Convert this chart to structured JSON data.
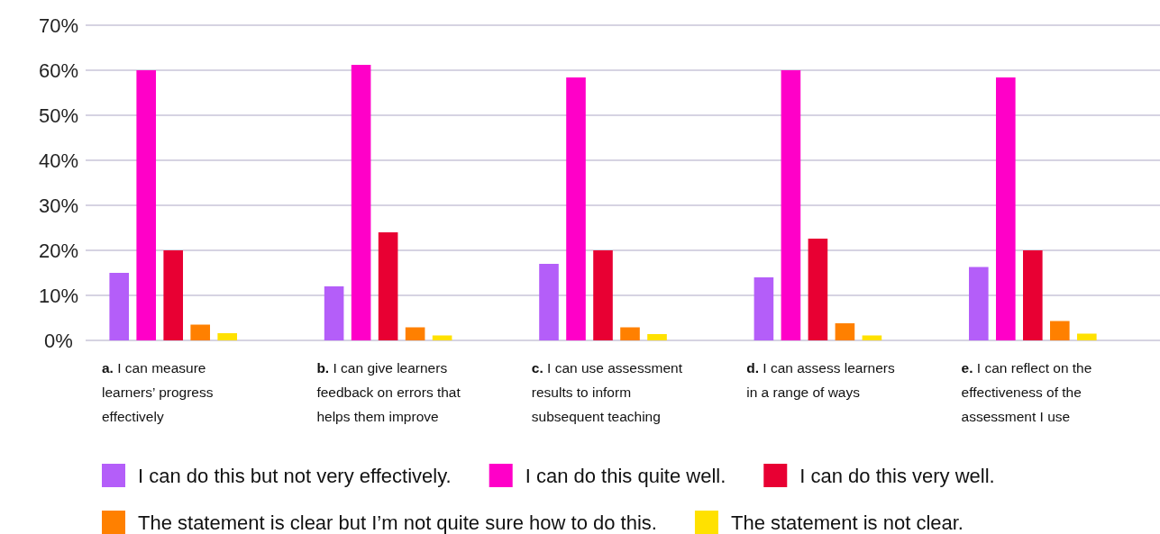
{
  "chart_data": {
    "type": "bar",
    "categories": [
      "a. I can measure learners’ progress effectively",
      "b. I can give learners feedback on errors that helps them improve",
      "c. I can use assessment results to inform subsequent teaching",
      "d. I can assess learners in a range of ways",
      "e. I can reflect on the effectiveness of the assessment I use"
    ],
    "series": [
      {
        "name": "I can do this but not very effectively.",
        "color": "#b45ef9",
        "values": [
          15,
          12,
          17,
          14,
          16.3
        ]
      },
      {
        "name": "I can do this quite well.",
        "color": "#ff00c8",
        "values": [
          60,
          61.2,
          58.4,
          60,
          58.4
        ]
      },
      {
        "name": "I can do this very well.",
        "color": "#e80033",
        "values": [
          20,
          24,
          20,
          22.6,
          20
        ]
      },
      {
        "name": "The statement is clear but I’m not quite sure how to do this.",
        "color": "#ff8000",
        "values": [
          3.5,
          2.9,
          2.9,
          3.8,
          4.3
        ]
      },
      {
        "name": "The statement is not clear.",
        "color": "#ffe100",
        "values": [
          1.6,
          1.1,
          1.4,
          1.1,
          1.5
        ]
      }
    ],
    "ylim": [
      0,
      70
    ],
    "yticks": [
      {
        "value": 0,
        "label": "0%"
      },
      {
        "value": 10,
        "label": "10%"
      },
      {
        "value": 20,
        "label": "20%"
      },
      {
        "value": 30,
        "label": "30%"
      },
      {
        "value": 40,
        "label": "40%"
      },
      {
        "value": 50,
        "label": "50%"
      },
      {
        "value": 60,
        "label": "60%"
      },
      {
        "value": 70,
        "label": "70%"
      }
    ],
    "grid": "y",
    "legend": "bottom"
  }
}
